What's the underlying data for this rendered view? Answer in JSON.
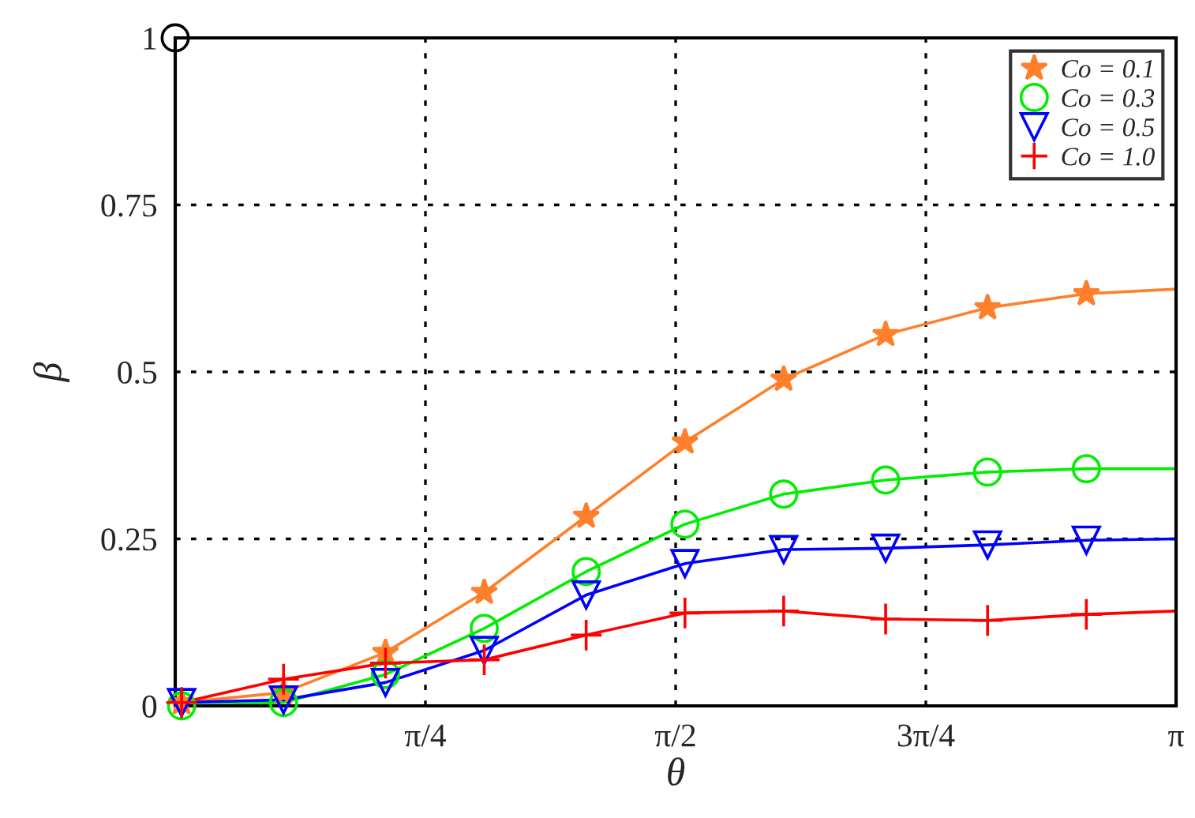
{
  "chart_data": {
    "type": "line",
    "xlabel": "θ",
    "ylabel": "β",
    "xlim": [
      0,
      3.1416
    ],
    "ylim": [
      0,
      1
    ],
    "xticks": [
      {
        "value": 0.7854,
        "label": "π/4"
      },
      {
        "value": 1.5708,
        "label": "π/2"
      },
      {
        "value": 2.3562,
        "label": "3π/4"
      },
      {
        "value": 3.1416,
        "label": "π"
      }
    ],
    "yticks": [
      0,
      0.25,
      0.5,
      0.75,
      1
    ],
    "grid": true,
    "legend": "top right",
    "series": [
      {
        "color": "#ff7f2a",
        "marker": "none",
        "x": [
          0.02,
          0.34,
          0.66,
          0.97,
          1.29,
          1.6,
          1.91,
          2.23,
          2.55,
          2.86,
          3.1416
        ],
        "values": [
          0.005,
          0.02,
          0.08,
          0.17,
          0.284,
          0.395,
          0.489,
          0.556,
          0.596,
          0.617,
          0.624
        ]
      },
      {
        "color": "#00ee00",
        "marker": "none",
        "x": [
          0.02,
          0.34,
          0.66,
          0.97,
          1.29,
          1.6,
          1.91,
          2.23,
          2.55,
          2.86,
          3.1416
        ],
        "values": [
          0.0,
          0.005,
          0.047,
          0.116,
          0.201,
          0.272,
          0.317,
          0.338,
          0.35,
          0.355,
          0.355
        ]
      },
      {
        "color": "#0000ff",
        "marker": "none",
        "x": [
          0.02,
          0.34,
          0.66,
          0.97,
          1.29,
          1.6,
          1.91,
          2.23,
          2.55,
          2.86,
          3.1416
        ],
        "values": [
          0.005,
          0.009,
          0.035,
          0.083,
          0.166,
          0.213,
          0.234,
          0.236,
          0.241,
          0.248,
          0.25
        ]
      },
      {
        "color": "#ff0000",
        "marker": "none",
        "x": [
          0.02,
          0.34,
          0.66,
          0.97,
          1.29,
          1.6,
          1.91,
          2.23,
          2.55,
          2.86,
          3.1416
        ],
        "values": [
          0.005,
          0.04,
          0.064,
          0.069,
          0.106,
          0.139,
          0.142,
          0.13,
          0.128,
          0.137,
          0.142
        ]
      },
      {
        "type": "scatter",
        "name": "Co = 0.1",
        "color": "#ff7f2a",
        "marker": "star",
        "x": [
          0.02,
          0.34,
          0.66,
          0.97,
          1.29,
          1.6,
          1.91,
          2.23,
          2.55,
          2.86
        ],
        "values": [
          0.005,
          0.02,
          0.08,
          0.17,
          0.284,
          0.395,
          0.489,
          0.556,
          0.596,
          0.617
        ]
      },
      {
        "type": "scatter",
        "name": "Co = 0.3",
        "color": "#00ee00",
        "marker": "circle",
        "x": [
          0.02,
          0.34,
          0.66,
          0.97,
          1.29,
          1.6,
          1.91,
          2.23,
          2.55,
          2.86
        ],
        "values": [
          0.0,
          0.005,
          0.047,
          0.116,
          0.201,
          0.272,
          0.317,
          0.338,
          0.35,
          0.355
        ]
      },
      {
        "type": "scatter",
        "name": "Co = 0.5",
        "color": "#0000ff",
        "marker": "triangle",
        "x": [
          0.02,
          0.34,
          0.66,
          0.97,
          1.29,
          1.6,
          1.91,
          2.23,
          2.55,
          2.86
        ],
        "values": [
          0.005,
          0.009,
          0.035,
          0.083,
          0.166,
          0.213,
          0.234,
          0.236,
          0.241,
          0.248
        ]
      },
      {
        "type": "scatter",
        "name": "Co = 1.0",
        "color": "#ff0000",
        "marker": "cross",
        "x": [
          0.02,
          0.34,
          0.66,
          0.97,
          1.29,
          1.6,
          1.91,
          2.23,
          2.55,
          2.86
        ],
        "values": [
          0.005,
          0.04,
          0.064,
          0.069,
          0.106,
          0.139,
          0.142,
          0.13,
          0.128,
          0.137
        ]
      },
      {
        "type": "scatter",
        "color": "#000000",
        "marker": "circle",
        "x": [
          0
        ],
        "values": [
          1
        ]
      }
    ]
  }
}
